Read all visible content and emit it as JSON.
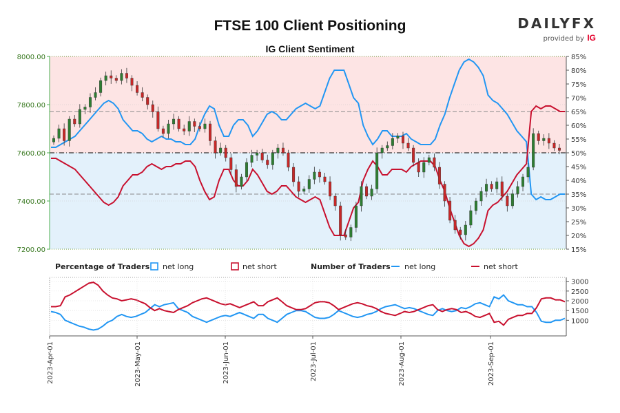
{
  "header": {
    "title": "FTSE 100 Client Positioning",
    "subtitle": "IG Client Sentiment",
    "logo_text": "DAILYFX",
    "logo_sub": "provided by",
    "logo_brand": "IG"
  },
  "legend": {
    "pct_title": "Percentage of Traders",
    "pct_long": "net long",
    "pct_short": "net short",
    "num_title": "Number of Traders",
    "num_long": "net long",
    "num_short": "net short"
  },
  "colors": {
    "long": "#2196f3",
    "short": "#c8102e",
    "up_candle": "#2e7d32",
    "down_candle": "#c62828",
    "bg_short": "#fde4e4",
    "bg_long": "#e3f1fb",
    "price_axis": "#4caf50"
  },
  "chart_data": [
    {
      "type": "candlestick",
      "title": "IG Client Sentiment",
      "y_axis_left": {
        "ylim": [
          7200,
          8000
        ],
        "ticks": [
          "7200.00",
          "7400.00",
          "7600.00",
          "7800.00",
          "8000.00"
        ]
      },
      "y_axis_right": {
        "ylim": [
          15,
          85
        ],
        "ticks": [
          "15%",
          "20%",
          "25%",
          "30%",
          "35%",
          "40%",
          "45%",
          "50%",
          "55%",
          "60%",
          "65%",
          "70%",
          "75%",
          "80%",
          "85%"
        ]
      },
      "reference_lines": [
        50,
        35,
        65
      ],
      "x_ticks": [
        "2023-Apr-01",
        "2023-May-01",
        "2023-Jun-01",
        "2023-Jul-01",
        "2023-Aug-01",
        "2023-Sep-01"
      ],
      "price_closes": [
        7660,
        7700,
        7650,
        7740,
        7720,
        7780,
        7790,
        7830,
        7850,
        7900,
        7920,
        7910,
        7900,
        7930,
        7910,
        7880,
        7850,
        7830,
        7800,
        7770,
        7700,
        7680,
        7720,
        7740,
        7700,
        7690,
        7730,
        7710,
        7700,
        7720,
        7650,
        7600,
        7620,
        7580,
        7530,
        7460,
        7500,
        7560,
        7590,
        7600,
        7570,
        7550,
        7600,
        7620,
        7600,
        7540,
        7480,
        7440,
        7450,
        7490,
        7520,
        7500,
        7480,
        7420,
        7380,
        7260,
        7250,
        7290,
        7380,
        7460,
        7420,
        7450,
        7600,
        7620,
        7630,
        7660,
        7670,
        7640,
        7620,
        7560,
        7520,
        7560,
        7580,
        7540,
        7470,
        7400,
        7320,
        7280,
        7260,
        7300,
        7360,
        7400,
        7440,
        7470,
        7450,
        7480,
        7420,
        7380,
        7430,
        7460,
        7500,
        7540,
        7680,
        7650,
        7660,
        7640,
        7620,
        7610
      ],
      "pct_long_line": [
        52,
        52,
        53,
        54,
        55,
        56,
        58,
        60,
        62,
        64,
        66,
        68,
        69,
        68,
        66,
        62,
        60,
        58,
        58,
        57,
        55,
        54,
        55,
        56,
        55,
        55,
        54,
        54,
        53,
        53,
        55,
        60,
        64,
        67,
        66,
        60,
        56,
        56,
        60,
        62,
        62,
        60,
        56,
        58,
        61,
        64,
        65,
        64,
        62,
        62,
        64,
        66,
        67,
        68,
        67,
        66,
        67,
        72,
        77,
        80,
        80,
        80,
        75,
        70,
        68,
        60,
        56,
        53,
        55,
        58,
        58,
        56,
        56,
        56,
        57,
        55,
        54,
        53,
        53,
        53,
        55,
        60,
        64,
        70,
        75,
        80,
        83,
        84,
        83,
        81,
        78,
        71,
        69,
        68,
        66,
        64,
        61,
        58,
        56,
        54,
        35,
        33,
        34,
        33,
        33,
        34,
        35,
        35
      ],
      "pct_short_line": [
        48,
        48,
        47,
        46,
        45,
        44,
        42,
        40,
        38,
        36,
        34,
        32,
        31,
        32,
        34,
        38,
        40,
        42,
        42,
        43,
        45,
        46,
        45,
        44,
        45,
        45,
        46,
        46,
        47,
        47,
        45,
        40,
        36,
        33,
        34,
        40,
        44,
        44,
        40,
        38,
        38,
        40,
        44,
        42,
        39,
        36,
        35,
        36,
        38,
        38,
        36,
        34,
        33,
        32,
        33,
        34,
        33,
        28,
        23,
        20,
        20,
        20,
        25,
        30,
        32,
        40,
        44,
        47,
        45,
        42,
        42,
        44,
        44,
        44,
        43,
        45,
        46,
        47,
        47,
        47,
        45,
        40,
        36,
        30,
        25,
        20,
        17,
        16,
        17,
        19,
        22,
        29,
        31,
        32,
        34,
        36,
        39,
        42,
        44,
        46,
        65,
        67,
        66,
        67,
        67,
        66,
        65,
        65
      ]
    },
    {
      "type": "line",
      "title": "Percentage of Traders / Number of Traders",
      "y_axis_right": {
        "ylim": [
          200,
          3200
        ],
        "ticks": [
          "1000",
          "1500",
          "2000",
          "2500",
          "3000"
        ]
      },
      "x_ticks": [
        "2023-Apr-01",
        "2023-May-01",
        "2023-Jun-01",
        "2023-Jul-01",
        "2023-Aug-01",
        "2023-Sep-01"
      ],
      "series": [
        {
          "name": "net long",
          "role": "percentage",
          "values": [
            1450,
            1400,
            1300,
            1000,
            900,
            800,
            700,
            650,
            550,
            500,
            550,
            700,
            900,
            1000,
            1200,
            1300,
            1200,
            1150,
            1200,
            1300,
            1400,
            1600,
            1800,
            1700,
            1800,
            1850,
            1900,
            1600,
            1500,
            1400,
            1200,
            1100,
            1000,
            900,
            1000,
            1100,
            1200,
            1250,
            1200,
            1300,
            1400,
            1300,
            1200,
            1100,
            1300,
            1300,
            1100,
            1000,
            900,
            1100,
            1300,
            1400,
            1500,
            1500,
            1450,
            1300,
            1150,
            1100,
            1100,
            1150,
            1300,
            1500,
            1400,
            1300,
            1200,
            1150,
            1200,
            1300,
            1350,
            1450,
            1600,
            1700,
            1750,
            1800,
            1700,
            1600,
            1650,
            1600,
            1500,
            1400,
            1300,
            1250,
            1500,
            1600,
            1500,
            1450,
            1500,
            1650,
            1600,
            1700,
            1850,
            1900,
            1800,
            1700,
            2200,
            2100,
            2300,
            2000,
            1900,
            1800,
            1800,
            1700,
            1700,
            1400,
            950,
            900,
            900,
            1000,
            1000,
            1100
          ]
        },
        {
          "name": "net short",
          "role": "percentage",
          "values": [
            1700,
            1700,
            1750,
            2200,
            2300,
            2450,
            2600,
            2750,
            2900,
            2950,
            2800,
            2500,
            2300,
            2150,
            2100,
            2000,
            2050,
            2100,
            2050,
            1950,
            1850,
            1650,
            1500,
            1600,
            1500,
            1450,
            1400,
            1550,
            1650,
            1750,
            1900,
            2000,
            2100,
            2150,
            2050,
            1950,
            1850,
            1800,
            1850,
            1750,
            1650,
            1750,
            1850,
            1950,
            1750,
            1750,
            1950,
            2050,
            2150,
            1950,
            1750,
            1650,
            1550,
            1550,
            1600,
            1750,
            1900,
            1950,
            1950,
            1900,
            1750,
            1550,
            1650,
            1750,
            1850,
            1900,
            1850,
            1750,
            1700,
            1600,
            1450,
            1350,
            1300,
            1250,
            1350,
            1450,
            1400,
            1450,
            1550,
            1650,
            1750,
            1800,
            1550,
            1450,
            1550,
            1600,
            1550,
            1400,
            1450,
            1350,
            1200,
            1150,
            1250,
            1350,
            900,
            950,
            750,
            1050,
            1150,
            1250,
            1250,
            1350,
            1350,
            1650,
            2100,
            2150,
            2150,
            2050,
            2050,
            1950
          ]
        },
        {
          "name": "net long",
          "role": "number",
          "values": [
            1450,
            1400,
            1300,
            1000,
            900,
            800,
            700,
            650,
            550,
            500,
            550,
            700,
            900,
            1000,
            1200,
            1300,
            1200,
            1150,
            1200,
            1300,
            1400,
            1600,
            1800,
            1700,
            1800,
            1850,
            1900,
            1600,
            1500,
            1400,
            1200,
            1100,
            1000,
            900,
            1000,
            1100,
            1200,
            1250,
            1200,
            1300,
            1400,
            1300,
            1200,
            1100,
            1300,
            1300,
            1100,
            1000,
            900,
            1100,
            1300,
            1400,
            1500,
            1500,
            1450,
            1300,
            1150,
            1100,
            1100,
            1150,
            1300,
            1500,
            1400,
            1300,
            1200,
            1150,
            1200,
            1300,
            1350,
            1450,
            1600,
            1700,
            1750,
            1800,
            1700,
            1600,
            1650,
            1600,
            1500,
            1400,
            1300,
            1250,
            1500,
            1600,
            1500,
            1450,
            1500,
            1650,
            1600,
            1700,
            1850,
            1900,
            1800,
            1700,
            2200,
            2100,
            2300,
            2000,
            1900,
            1800,
            1800,
            1700,
            1700,
            1400,
            950,
            900,
            900,
            1000,
            1000,
            1100
          ]
        },
        {
          "name": "net short",
          "role": "number",
          "values": [
            1700,
            1700,
            1750,
            2200,
            2300,
            2450,
            2600,
            2750,
            2900,
            2950,
            2800,
            2500,
            2300,
            2150,
            2100,
            2000,
            2050,
            2100,
            2050,
            1950,
            1850,
            1650,
            1500,
            1600,
            1500,
            1450,
            1400,
            1550,
            1650,
            1750,
            1900,
            2000,
            2100,
            2150,
            2050,
            1950,
            1850,
            1800,
            1850,
            1750,
            1650,
            1750,
            1850,
            1950,
            1750,
            1750,
            1950,
            2050,
            2150,
            1950,
            1750,
            1650,
            1550,
            1550,
            1600,
            1750,
            1900,
            1950,
            1950,
            1900,
            1750,
            1550,
            1650,
            1750,
            1850,
            1900,
            1850,
            1750,
            1700,
            1600,
            1450,
            1350,
            1300,
            1250,
            1350,
            1450,
            1400,
            1450,
            1550,
            1650,
            1750,
            1800,
            1550,
            1450,
            1550,
            1600,
            1550,
            1400,
            1450,
            1350,
            1200,
            1150,
            1250,
            1350,
            900,
            950,
            750,
            1050,
            1150,
            1250,
            1250,
            1350,
            1350,
            1650,
            2100,
            2150,
            2150,
            2050,
            2050,
            1950
          ]
        }
      ]
    }
  ]
}
